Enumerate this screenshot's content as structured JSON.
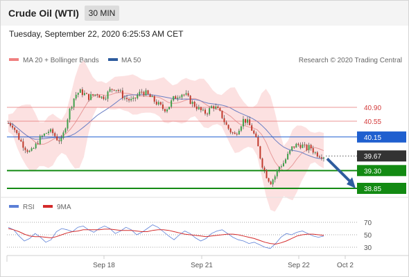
{
  "header": {
    "title": "Crude Oil (WTI)",
    "interval": "30 MIN"
  },
  "timestamp": "Tuesday, September 22, 2020 6:25:53 AM CET",
  "legend": {
    "bollinger": "MA 20 + Bollinger Bands",
    "ma50": "MA 50",
    "credit": "Research © 2020 Trading Central"
  },
  "rsi_legend": {
    "rsi": "RSI",
    "ma9": "9MA"
  },
  "colors": {
    "up": "#3ea04a",
    "down": "#c0392b",
    "band": "#fbdcdc",
    "ma20": "#e79a9a",
    "ma50": "#6b7fc4",
    "resistance": "#e57373",
    "pivot": "#1f5fcf",
    "support": "#138a13",
    "last": "#333333",
    "arrow": "#2e5c9e",
    "rsi": "#5b7fd6",
    "rsi_ma": "#d42a2a"
  },
  "chart_data": {
    "type": "candlestick",
    "instrument": "Crude Oil (WTI)",
    "timeframe": "30 MIN",
    "x_ticks": [
      "Sep 18",
      "Sep 21",
      "Sep 22",
      "Oct 2"
    ],
    "y_range": [
      38.6,
      41.65
    ],
    "levels": [
      {
        "label": "40.90",
        "value": 40.9,
        "kind": "resistance"
      },
      {
        "label": "40.55",
        "value": 40.55,
        "kind": "resistance"
      },
      {
        "label": "40.15",
        "value": 40.15,
        "kind": "pivot"
      },
      {
        "label": "39.67",
        "value": 39.67,
        "kind": "last"
      },
      {
        "label": "39.30",
        "value": 39.3,
        "kind": "support"
      },
      {
        "label": "38.85",
        "value": 38.85,
        "kind": "support"
      }
    ],
    "price_path": [
      40.5,
      40.45,
      40.2,
      40.0,
      39.85,
      39.75,
      39.9,
      40.1,
      40.2,
      40.3,
      40.25,
      40.1,
      40.05,
      40.5,
      40.9,
      41.2,
      41.3,
      41.25,
      41.15,
      41.2,
      41.25,
      41.15,
      41.2,
      41.35,
      41.4,
      41.3,
      41.15,
      41.1,
      41.05,
      41.2,
      41.3,
      41.25,
      41.15,
      41.05,
      40.95,
      40.85,
      40.9,
      41.1,
      41.2,
      41.25,
      41.2,
      41.05,
      40.95,
      40.85,
      40.75,
      40.8,
      40.95,
      40.85,
      40.7,
      40.45,
      40.3,
      40.2,
      40.4,
      40.6,
      40.5,
      40.3,
      40.0,
      39.5,
      39.2,
      39.0,
      39.15,
      39.4,
      39.5,
      39.7,
      39.9,
      39.95,
      39.95,
      39.85,
      39.9,
      39.75,
      39.7,
      39.67
    ],
    "forecast": {
      "from": 39.67,
      "to": 38.85,
      "direction": "down"
    },
    "rsi": {
      "levels": [
        70,
        50,
        30
      ],
      "rsi_path": [
        62,
        58,
        48,
        40,
        44,
        52,
        46,
        38,
        42,
        55,
        60,
        58,
        55,
        62,
        64,
        58,
        54,
        60,
        64,
        60,
        52,
        56,
        62,
        58,
        50,
        54,
        60,
        66,
        62,
        55,
        48,
        42,
        50,
        56,
        52,
        45,
        40,
        44,
        52,
        56,
        58,
        52,
        46,
        42,
        40,
        36,
        38,
        34,
        30,
        28,
        36,
        46,
        52,
        50,
        54,
        56,
        52,
        48,
        46,
        48
      ],
      "ma9_path": [
        60,
        58,
        55,
        51,
        48,
        47,
        47,
        46,
        45,
        47,
        50,
        53,
        55,
        56,
        58,
        58,
        58,
        58,
        59,
        59,
        58,
        57,
        57,
        57,
        56,
        55,
        55,
        57,
        58,
        58,
        57,
        55,
        53,
        51,
        50,
        49,
        48,
        47,
        48,
        49,
        50,
        51,
        51,
        50,
        48,
        46,
        44,
        41,
        38,
        36,
        35,
        37,
        40,
        44,
        48,
        50,
        51,
        51,
        50,
        49
      ]
    }
  }
}
